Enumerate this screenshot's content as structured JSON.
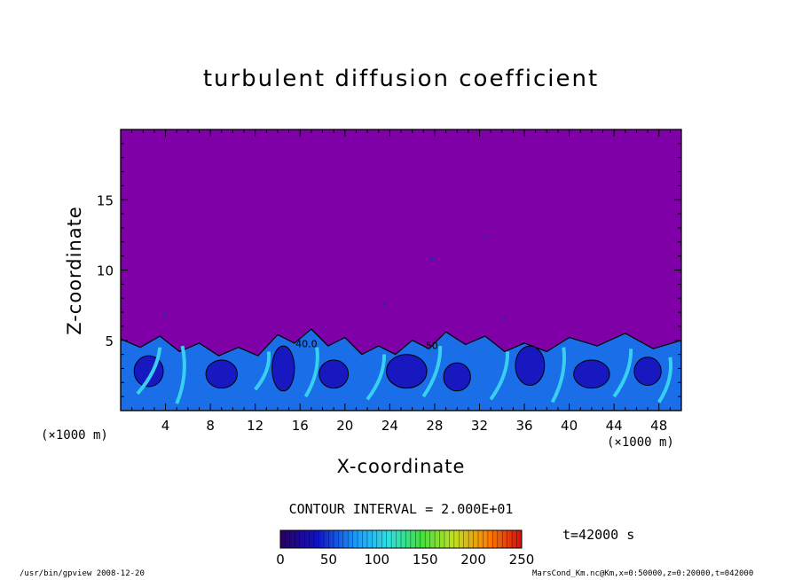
{
  "chart_data": {
    "type": "heatmap",
    "title": "turbulent diffusion coefficient",
    "xlabel": "X-coordinate",
    "ylabel": "Z-coordinate",
    "x_unit": "(×1000 m)",
    "xlim": [
      0,
      50
    ],
    "ylim": [
      0,
      20
    ],
    "x_ticks": [
      4,
      8,
      12,
      16,
      20,
      24,
      28,
      32,
      36,
      40,
      44,
      48
    ],
    "y_ticks": [
      5,
      10,
      15
    ],
    "contour_interval": "CONTOUR INTERVAL = 2.000E+01",
    "contour_labels": [
      "40.0",
      "50"
    ],
    "colorbar": {
      "min": 0,
      "max": 250,
      "ticks": [
        0,
        50,
        100,
        150,
        200,
        250
      ]
    },
    "time_label": "t=42000 s",
    "background_color": "#7f00a6",
    "turbulent_layer": {
      "top_z": [
        5.1,
        5.3,
        4.8,
        4.5,
        5.4,
        5.8,
        5.2,
        4.6,
        5.0,
        5.6,
        5.3,
        4.8,
        5.2,
        5.5,
        5.0
      ],
      "top_x": [
        0,
        3.5,
        7,
        10.5,
        14,
        17,
        20,
        23,
        26,
        29,
        32.5,
        36,
        40,
        45,
        50
      ]
    },
    "grid": false,
    "legend": "bottom"
  },
  "footer": {
    "left": "/usr/bin/gpview   2008-12-20",
    "right": "MarsCond_Km.nc@Km,x=0:50000,z=0:20000,t=042000"
  }
}
